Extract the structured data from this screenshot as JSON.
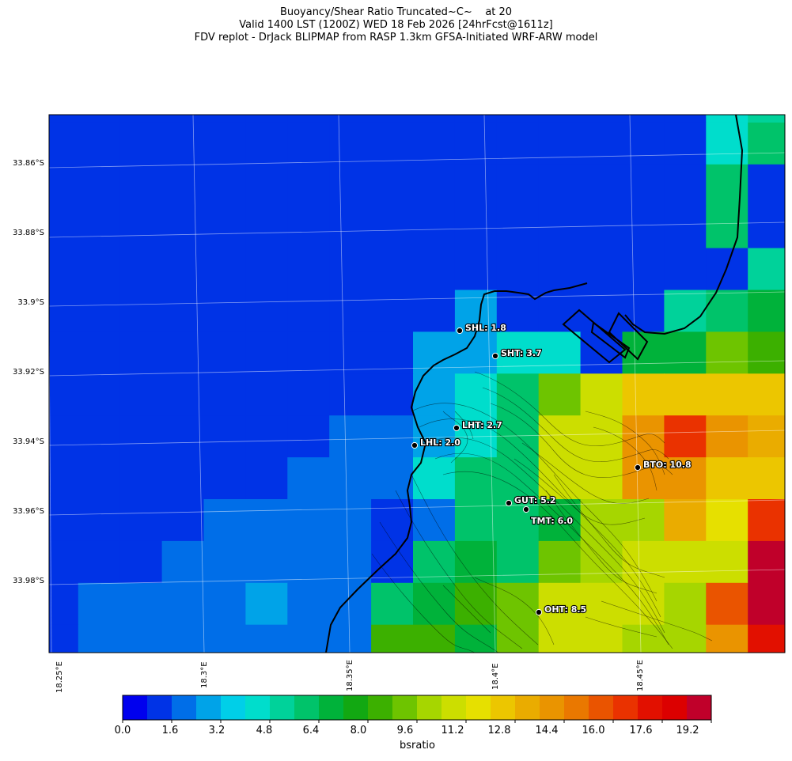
{
  "title": {
    "line1": "Buoyancy/Shear Ratio Truncated~C~    at 20",
    "line2": "Valid 1400 LST (1200Z) WED 18 Feb 2026 [24hrFcst@1611z]",
    "line3": "FDV replot - DrJack BLIPMAP from RASP 1.3km GFSA-Initiated WRF-ARW model"
  },
  "lat_labels": [
    "33.86°S",
    "33.88°S",
    "33.9°S",
    "33.92°S",
    "33.94°S",
    "33.96°S",
    "33.98°S"
  ],
  "lon_labels": [
    "18.25°E",
    "18.3°E",
    "18.35°E",
    "18.4°E",
    "18.45°E"
  ],
  "colorbar": {
    "label": "bsratio",
    "ticks": [
      "0.0",
      "1.6",
      "3.2",
      "4.8",
      "6.4",
      "8.0",
      "9.6",
      "11.2",
      "12.8",
      "14.4",
      "16.0",
      "17.6",
      "19.2"
    ],
    "colors": [
      "#0000ee",
      "#0033e6",
      "#006ee8",
      "#00a3e8",
      "#00cfe8",
      "#00ddcc",
      "#00d29a",
      "#00c36a",
      "#00b23a",
      "#12a812",
      "#3cb000",
      "#6ec400",
      "#a6d600",
      "#ccde00",
      "#e6e000",
      "#ecc600",
      "#eaac00",
      "#ea9400",
      "#ea7800",
      "#ea5400",
      "#ea3200",
      "#e21000",
      "#dc0000",
      "#c0002a"
    ]
  },
  "stations": [
    {
      "name": "SHL",
      "label": "SHL: 1.8",
      "value": 1.8
    },
    {
      "name": "SHT",
      "label": "SHT: 3.7",
      "value": 3.7
    },
    {
      "name": "LHT",
      "label": "LHT: 2.7",
      "value": 2.7
    },
    {
      "name": "LHL",
      "label": "LHL: 2.0",
      "value": 2.0
    },
    {
      "name": "BTO",
      "label": "BTO: 10.8",
      "value": 10.8
    },
    {
      "name": "GUT",
      "label": "GUT: 5.2",
      "value": 5.2
    },
    {
      "name": "TMT",
      "label": "TMT: 6.0",
      "value": 6.0
    },
    {
      "name": "OHT",
      "label": "OHT: 8.5",
      "value": 8.5
    }
  ],
  "grid_colors": {
    "a": "#0033e6",
    "b": "#006ee8",
    "c": "#00a3e8",
    "e": "#00ddcc",
    "g": "#00c36a",
    "h": "#00b23a",
    "i": "#3cb000",
    "j": "#6ec400",
    "k": "#a6d600",
    "l": "#ccde00",
    "m": "#e6e000",
    "n": "#ecc600",
    "o": "#eaac00",
    "p": "#ea9400",
    "q": "#ea3200",
    "r": "#e21000",
    "s": "#c0002a",
    "d": "#00d29a",
    "f": "#ea5400"
  },
  "grid_rows": [
    "aaaaaaaaaaaaaaaaaed",
    "aaaaaaaaaaaaaaaaaeg",
    "aaaaaaaaaaaaaaaaaga",
    "aaaaaaaaaaaaaaaaaga",
    "aaaaaaaaaaaaaaaaaad",
    "aaaaaaaaaaacaaaadgh",
    "aaaaaaaaaacceeahhji",
    "aaaaaaaaaacegjlnnnn",
    "aaaaaaaabbcegllpqpo",
    "aaaaaaabbbeggllppnn",
    "aaaaabbbbabgghkkomq",
    "aaaabbbbbaghgjkllls",
    "aabbbbcbbghijlllkfs",
    "aabbbbbbbiihjllkkpr"
  ]
}
